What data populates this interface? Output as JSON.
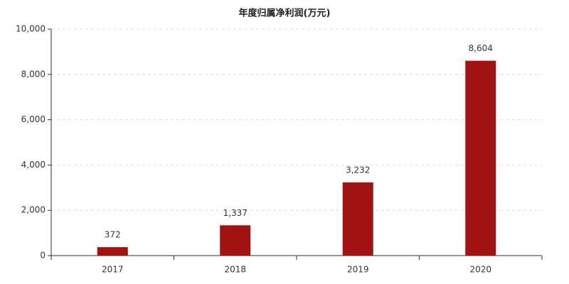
{
  "chart_data": {
    "type": "bar",
    "title": "年度归属净利润(万元)",
    "categories": [
      "2017",
      "2018",
      "2019",
      "2020"
    ],
    "values": [
      372,
      1337,
      3232,
      8604
    ],
    "value_labels": [
      "372",
      "1,337",
      "3,232",
      "8,604"
    ],
    "color": "#a11212",
    "ylim": [
      0,
      10000
    ],
    "yticks": [
      0,
      {
        "value": 2000,
        "label": "2,000"
      },
      {
        "value": 4000,
        "label": "4,000"
      },
      {
        "value": 6000,
        "label": "6,000"
      },
      {
        "value": 8000,
        "label": "8,000"
      },
      {
        "value": 10000,
        "label": "10,000"
      }
    ],
    "grid": true
  }
}
